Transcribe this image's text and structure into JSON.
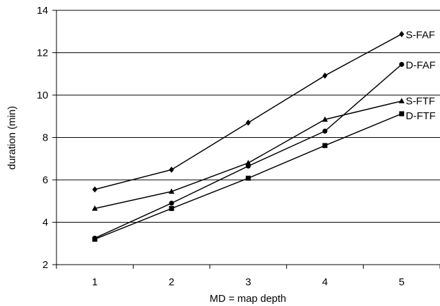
{
  "chart_data": {
    "type": "line",
    "xlabel": "MD = map depth",
    "ylabel": "duration (min)",
    "x": [
      1,
      2,
      3,
      4,
      5
    ],
    "xlim": [
      0.5,
      5.5
    ],
    "ylim": [
      2,
      14
    ],
    "yticks": [
      2,
      4,
      6,
      8,
      10,
      12,
      14
    ],
    "xticks": [
      1,
      2,
      3,
      4,
      5
    ],
    "grid": "horizontal major gridlines",
    "legend": "labels at line ends (right)",
    "series": [
      {
        "name": "S-FAF",
        "marker": "diamond",
        "values": [
          5.55,
          6.48,
          8.7,
          10.92,
          12.88
        ]
      },
      {
        "name": "D-FAF",
        "marker": "circle",
        "values": [
          3.25,
          4.9,
          6.65,
          8.3,
          11.45
        ]
      },
      {
        "name": "S-FTF",
        "marker": "triangle",
        "values": [
          4.65,
          5.45,
          6.8,
          8.85,
          9.72
        ]
      },
      {
        "name": "D-FTF",
        "marker": "square",
        "values": [
          3.2,
          4.65,
          6.08,
          7.62,
          9.12
        ]
      }
    ],
    "line_color": "#000000"
  }
}
